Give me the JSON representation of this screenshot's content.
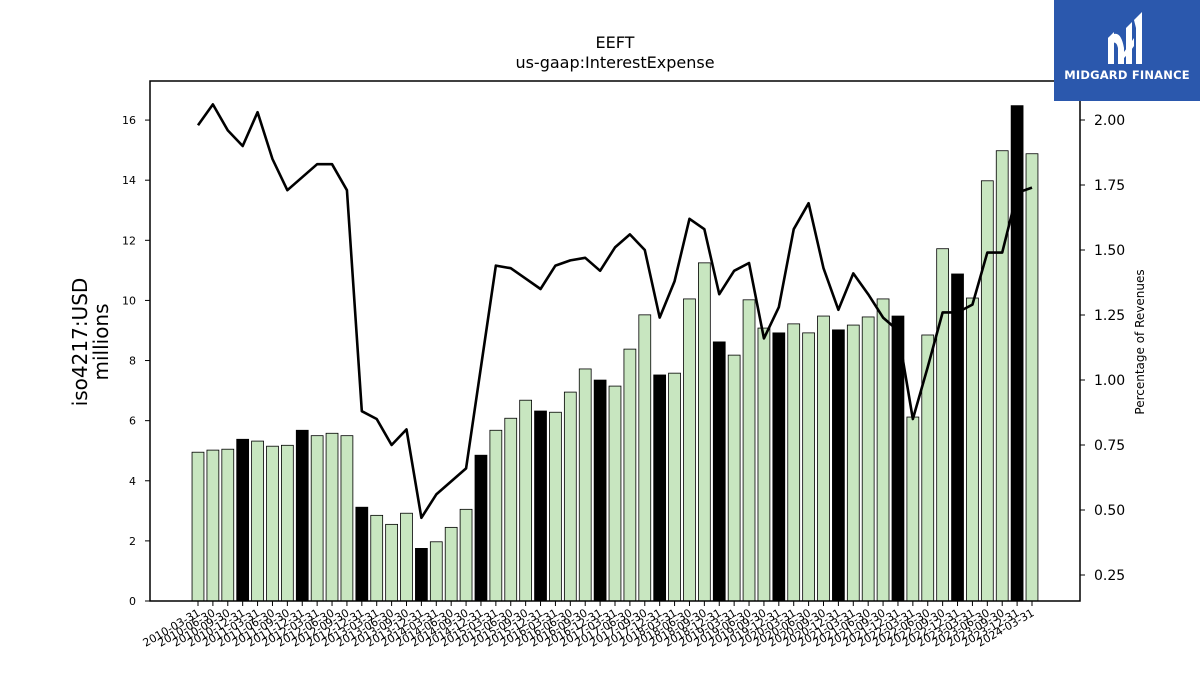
{
  "logo": {
    "text": "MIDGARD FINANCE",
    "bg_color": "#2b58ad"
  },
  "chart_data": {
    "type": "bar",
    "title": "EEFT",
    "subtitle": "us-gaap:InterestExpense",
    "ylabel": "iso4217:USD",
    "ylabel_unit": "millions",
    "ylabel_right": "Percentage of Revenues",
    "ylim": [
      0,
      17.3
    ],
    "ylim_right": [
      0.15,
      2.15
    ],
    "yticks": [
      0,
      2,
      4,
      6,
      8,
      10,
      12,
      14,
      16
    ],
    "yticks_right": [
      "0.25",
      "0.50",
      "0.75",
      "1.00",
      "1.25",
      "1.50",
      "1.75",
      "2.00"
    ],
    "bar_color": "#c8e6c0",
    "bar_highlight_color": "#000000",
    "line_color": "#000000",
    "categories": [
      "2010-03-31",
      "2010-06-30",
      "2010-09-30",
      "2010-12-31",
      "2011-03-31",
      "2011-06-30",
      "2011-09-30",
      "2011-12-31",
      "2012-03-31",
      "2012-06-30",
      "2012-09-30",
      "2012-12-31",
      "2013-03-31",
      "2013-06-30",
      "2013-09-30",
      "2013-12-31",
      "2014-03-31",
      "2014-06-30",
      "2014-09-30",
      "2014-12-31",
      "2015-03-31",
      "2015-06-30",
      "2015-09-30",
      "2015-12-31",
      "2016-03-31",
      "2016-06-30",
      "2016-09-30",
      "2016-12-31",
      "2017-03-31",
      "2017-06-30",
      "2017-09-30",
      "2017-12-31",
      "2018-03-31",
      "2018-06-30",
      "2018-09-30",
      "2018-12-31",
      "2019-03-31",
      "2019-06-30",
      "2019-09-30",
      "2019-12-31",
      "2020-03-31",
      "2020-06-30",
      "2020-09-30",
      "2020-12-31",
      "2021-03-31",
      "2021-06-30",
      "2021-09-30",
      "2021-12-31",
      "2022-03-31",
      "2022-06-30",
      "2022-09-30",
      "2022-12-31",
      "2023-03-31",
      "2023-06-30",
      "2023-09-30",
      "2023-12-31",
      "2024-03-31"
    ],
    "values": [
      4.95,
      5.02,
      5.05,
      5.38,
      5.32,
      5.15,
      5.18,
      5.68,
      5.5,
      5.58,
      5.5,
      3.12,
      2.85,
      2.55,
      2.92,
      1.75,
      1.97,
      2.45,
      3.05,
      4.85,
      5.68,
      6.08,
      6.68,
      6.32,
      6.28,
      6.95,
      7.72,
      7.35,
      7.15,
      8.38,
      9.52,
      7.52,
      7.58,
      10.05,
      11.25,
      8.62,
      8.18,
      10.02,
      9.08,
      8.92,
      9.22,
      8.92,
      9.48,
      9.02,
      9.18,
      9.45,
      10.05,
      9.48,
      6.12,
      8.85,
      11.72,
      10.88,
      10.08,
      13.98,
      14.98,
      16.48,
      14.88
    ],
    "highlighted": [
      3,
      7,
      11,
      15,
      19,
      23,
      27,
      31,
      35,
      39,
      43,
      47,
      51,
      55
    ],
    "line_values": [
      1.98,
      2.06,
      1.96,
      1.9,
      2.03,
      1.85,
      1.73,
      1.78,
      1.83,
      1.83,
      1.73,
      0.88,
      0.85,
      0.75,
      0.81,
      0.47,
      0.56,
      0.61,
      0.66,
      1.05,
      1.44,
      1.43,
      1.39,
      1.35,
      1.44,
      1.46,
      1.47,
      1.42,
      1.51,
      1.56,
      1.5,
      1.24,
      1.38,
      1.62,
      1.58,
      1.33,
      1.42,
      1.45,
      1.16,
      1.28,
      1.58,
      1.68,
      1.43,
      1.27,
      1.41,
      1.33,
      1.24,
      1.19,
      0.85,
      1.05,
      1.26,
      1.26,
      1.29,
      1.49,
      1.49,
      1.72,
      1.74
    ]
  }
}
